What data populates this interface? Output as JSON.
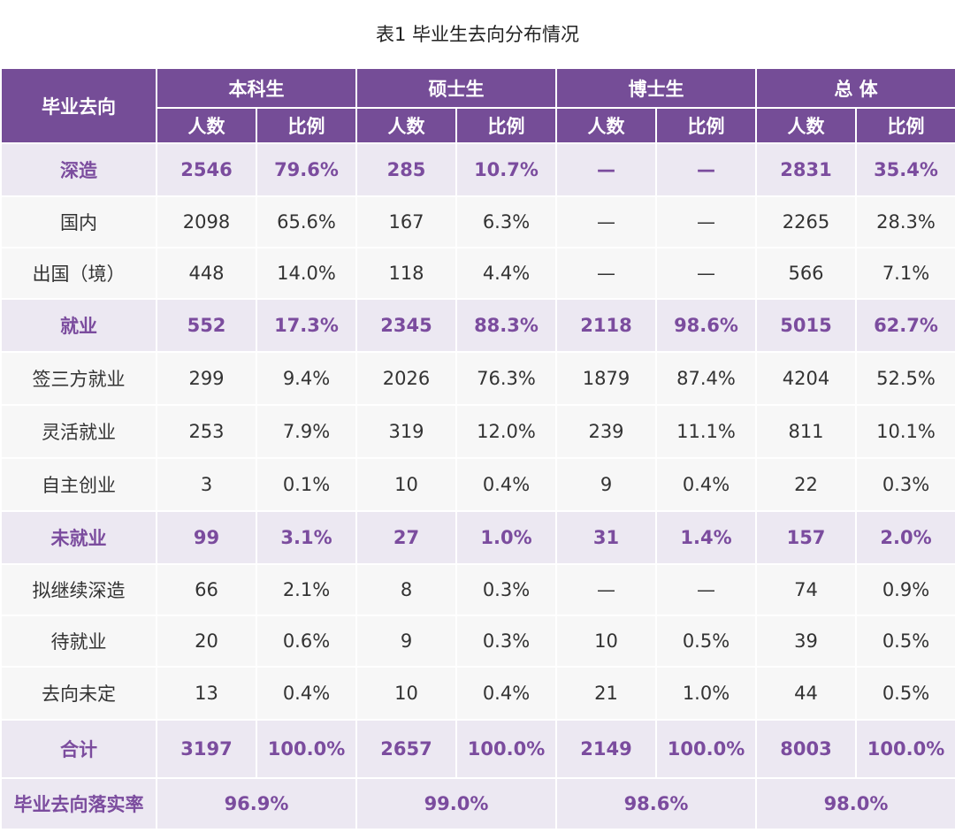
{
  "title": "表1  毕业生去向分布情况",
  "header": {
    "corner": "毕业去向",
    "groups": [
      "本科生",
      "硕士生",
      "博士生",
      "总  体"
    ],
    "subcols": [
      "人数",
      "比例"
    ]
  },
  "rows": [
    {
      "label": "深造",
      "kind": "cat",
      "v": [
        "2546",
        "79.6%",
        "285",
        "10.7%",
        "—",
        "—",
        "2831",
        "35.4%"
      ]
    },
    {
      "label": "国内",
      "kind": "sub",
      "v": [
        "2098",
        "65.6%",
        "167",
        "6.3%",
        "—",
        "—",
        "2265",
        "28.3%"
      ]
    },
    {
      "label": "出国（境）",
      "kind": "sub",
      "v": [
        "448",
        "14.0%",
        "118",
        "4.4%",
        "—",
        "—",
        "566",
        "7.1%"
      ]
    },
    {
      "label": "就业",
      "kind": "cat",
      "v": [
        "552",
        "17.3%",
        "2345",
        "88.3%",
        "2118",
        "98.6%",
        "5015",
        "62.7%"
      ]
    },
    {
      "label": "签三方就业",
      "kind": "sub",
      "v": [
        "299",
        "9.4%",
        "2026",
        "76.3%",
        "1879",
        "87.4%",
        "4204",
        "52.5%"
      ]
    },
    {
      "label": "灵活就业",
      "kind": "sub",
      "v": [
        "253",
        "7.9%",
        "319",
        "12.0%",
        "239",
        "11.1%",
        "811",
        "10.1%"
      ]
    },
    {
      "label": "自主创业",
      "kind": "sub",
      "v": [
        "3",
        "0.1%",
        "10",
        "0.4%",
        "9",
        "0.4%",
        "22",
        "0.3%"
      ]
    },
    {
      "label": "未就业",
      "kind": "cat",
      "v": [
        "99",
        "3.1%",
        "27",
        "1.0%",
        "31",
        "1.4%",
        "157",
        "2.0%"
      ]
    },
    {
      "label": "拟继续深造",
      "kind": "sub",
      "v": [
        "66",
        "2.1%",
        "8",
        "0.3%",
        "—",
        "—",
        "74",
        "0.9%"
      ]
    },
    {
      "label": "待就业",
      "kind": "sub",
      "v": [
        "20",
        "0.6%",
        "9",
        "0.3%",
        "10",
        "0.5%",
        "39",
        "0.5%"
      ]
    },
    {
      "label": "去向未定",
      "kind": "sub",
      "v": [
        "13",
        "0.4%",
        "10",
        "0.4%",
        "21",
        "1.0%",
        "44",
        "0.5%"
      ]
    },
    {
      "label": "合计",
      "kind": "cat",
      "v": [
        "3197",
        "100.0%",
        "2657",
        "100.0%",
        "2149",
        "100.0%",
        "8003",
        "100.0%"
      ]
    }
  ],
  "rate_row": {
    "label": "毕业去向落实率",
    "v": [
      "96.9%",
      "99.0%",
      "98.6%",
      "98.0%"
    ]
  }
}
